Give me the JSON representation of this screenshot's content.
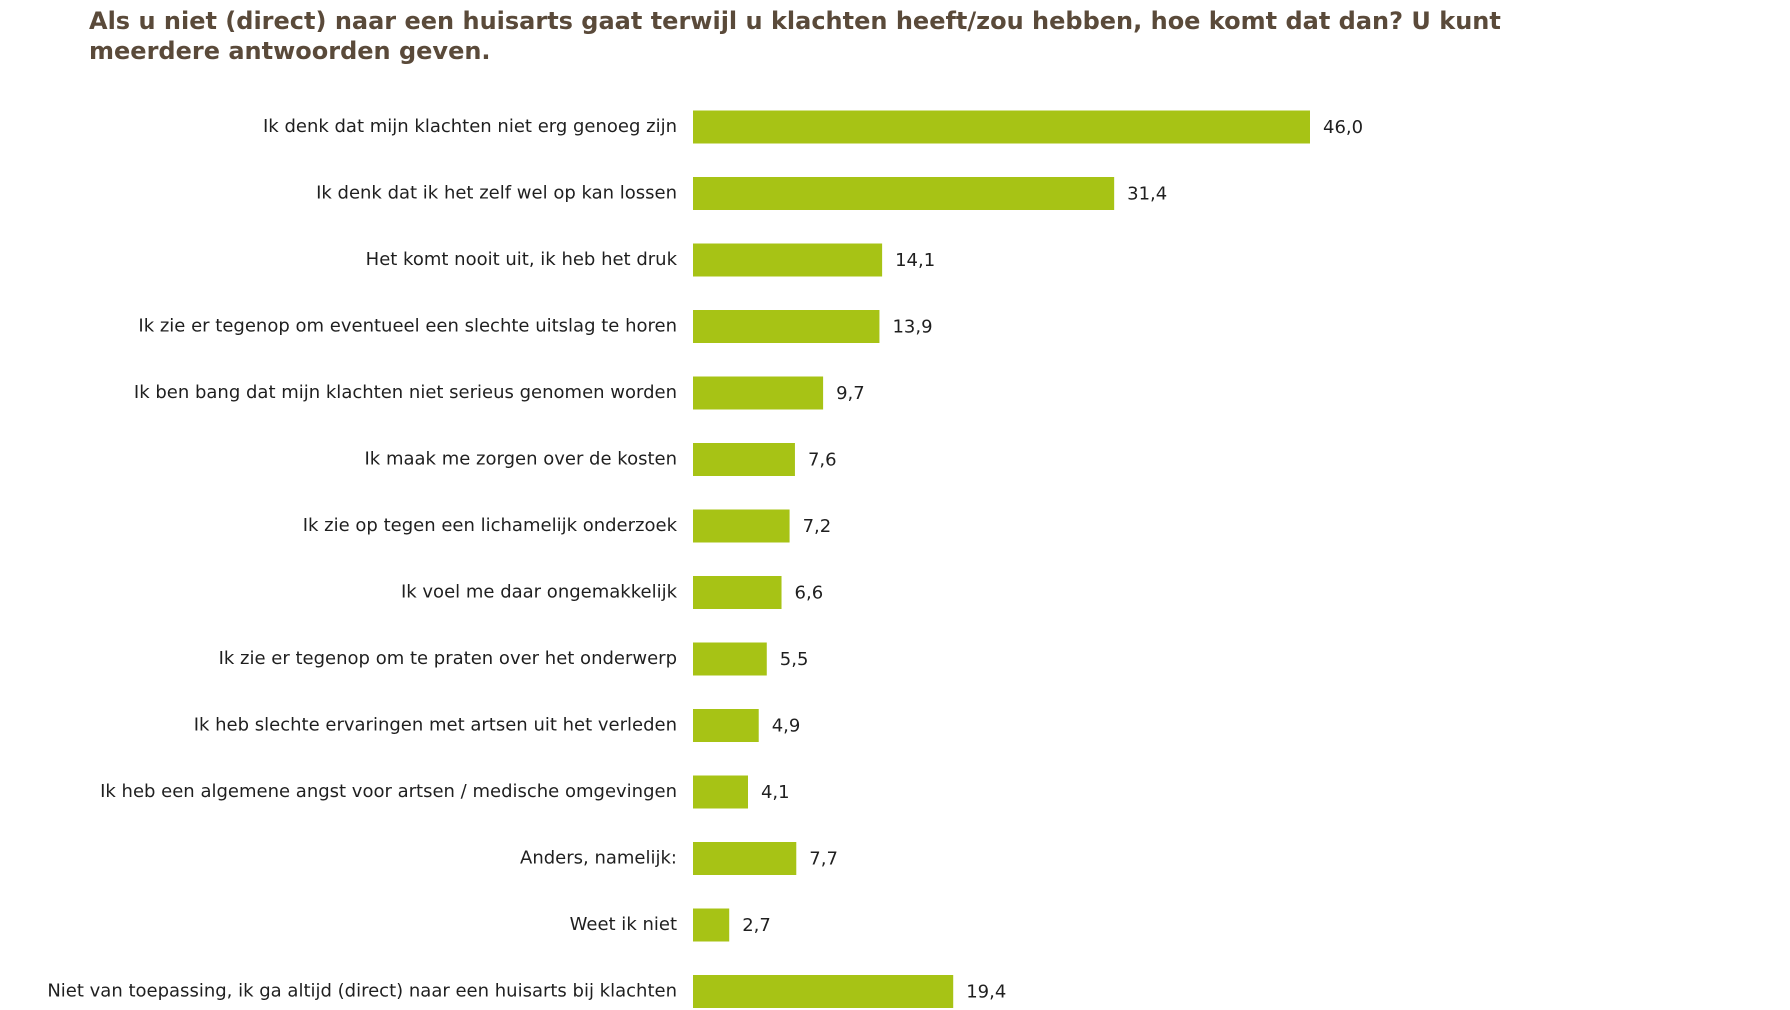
{
  "chart_data": {
    "type": "bar",
    "orientation": "horizontal",
    "title": "Als u niet (direct) naar een huisarts gaat terwijl u klachten heeft/zou hebben, hoe komt dat dan? U kunt meerdere antwoorden geven.",
    "xlabel": "",
    "ylabel": "",
    "grid": false,
    "legend": "none",
    "xlim": [
      0,
      46.0
    ],
    "bar_color": "#a7c315",
    "categories": [
      "Ik denk dat mijn klachten niet erg genoeg zijn",
      "Ik denk dat ik het zelf wel op kan lossen",
      "Het komt nooit uit, ik heb het druk",
      "Ik zie er tegenop om eventueel een slechte uitslag te horen",
      "Ik ben bang dat mijn klachten niet serieus genomen worden",
      "Ik maak me zorgen over de kosten",
      "Ik zie op tegen een lichamelijk onderzoek",
      "Ik voel me daar ongemakkelijk",
      "Ik zie er tegenop om te praten over het onderwerp",
      "Ik heb slechte ervaringen met artsen uit het verleden",
      "Ik heb een algemene angst voor artsen / medische omgevingen",
      "Anders, namelijk:",
      "Weet ik niet",
      "Niet van toepassing, ik ga altijd (direct) naar een huisarts bij klachten"
    ],
    "values": [
      46.0,
      31.4,
      14.1,
      13.9,
      9.7,
      7.6,
      7.2,
      6.6,
      5.5,
      4.9,
      4.1,
      7.7,
      2.7,
      19.4
    ],
    "value_labels": [
      "46,0",
      "31,4",
      "14,1",
      "13,9",
      "9,7",
      "7,6",
      "7,2",
      "6,6",
      "5,5",
      "4,9",
      "4,1",
      "7,7",
      "2,7",
      "19,4"
    ]
  }
}
